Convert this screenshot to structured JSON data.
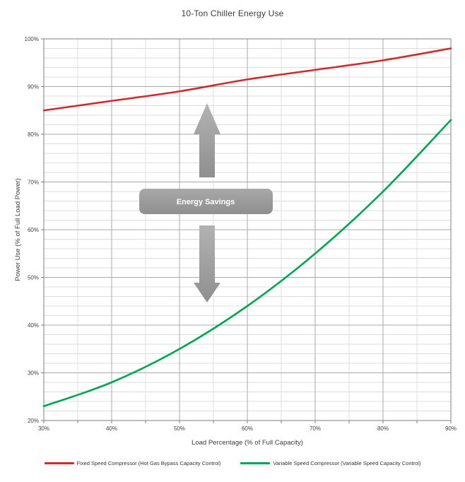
{
  "page": {
    "background": "#ffffff"
  },
  "chart_data": {
    "type": "line",
    "title": "10-Ton Chiller Energy Use",
    "xlabel": "Load Percentage (% of Full Capacity)",
    "ylabel": "Power Use (% of Full Load Power)",
    "x": [
      30,
      40,
      50,
      60,
      70,
      80,
      90
    ],
    "x_tick_labels": [
      "30%",
      "40%",
      "50%",
      "60%",
      "70%",
      "80%",
      "90%"
    ],
    "y_ticks": [
      20,
      30,
      40,
      50,
      60,
      70,
      80,
      90,
      100
    ],
    "y_tick_labels": [
      "20%",
      "30%",
      "40%",
      "50%",
      "60%",
      "70%",
      "80%",
      "90%",
      "100%"
    ],
    "xlim": [
      30,
      90
    ],
    "ylim": [
      20,
      100
    ],
    "x_minor_step": 5,
    "y_minor_step": 2,
    "grid": true,
    "legend_position": "bottom",
    "series": [
      {
        "name": "Fixed Speed Compressor (Hot Gas Bypass Capacity Control)",
        "color": "#cf2a2e",
        "values": [
          85,
          87,
          89,
          91.5,
          93.5,
          95.5,
          98
        ]
      },
      {
        "name": "Variable Speed Compressor (Variable Speed Capacity Control)",
        "color": "#00a651",
        "values": [
          23,
          28,
          35,
          44,
          55,
          68,
          83
        ]
      }
    ],
    "annotation": {
      "label": "Energy Savings",
      "box_color": "#9b9b9b",
      "arrow_color": "#a2a2a2",
      "text_color": "#ffffff"
    },
    "colors": {
      "minor_grid": "#dcdcdc",
      "major_grid": "#a9a9a9",
      "axis": "#7f7f7f",
      "tick_text": "#404040"
    }
  }
}
